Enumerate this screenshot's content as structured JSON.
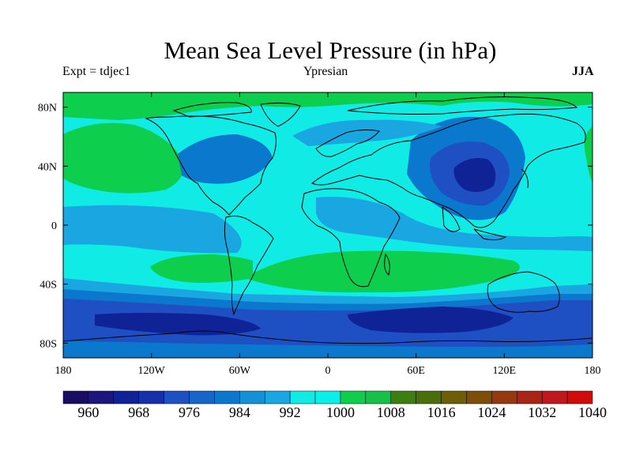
{
  "title": "Mean Sea Level Pressure (in hPa)",
  "subtitle_left": "Expt = tdjec1",
  "subtitle_center": "Ypresian",
  "subtitle_right": "JJA",
  "colors": {
    "deep_blue": "#0f2396",
    "blue": "#1f50c3",
    "mid_blue": "#0a78cd",
    "light_blue": "#1aa6e0",
    "cyan": "#10ebe6",
    "green": "#0dce4d",
    "coast": "#000000"
  },
  "chart_data": {
    "type": "filled-contour-map",
    "variable": "Mean Sea Level Pressure",
    "units": "hPa",
    "season": "JJA",
    "x_ticks": [
      "180",
      "120W",
      "60W",
      "0",
      "60E",
      "120E",
      "180"
    ],
    "y_ticks": [
      "80N",
      "40N",
      "0",
      "40S",
      "80S"
    ],
    "lon_range": [
      -180,
      180
    ],
    "lat_range": [
      -90,
      90
    ],
    "colorbar": {
      "levels": [
        960,
        964,
        968,
        972,
        976,
        980,
        984,
        988,
        992,
        996,
        1000,
        1004,
        1008,
        1012,
        1016,
        1020,
        1024,
        1028,
        1032,
        1036,
        1040
      ],
      "labels": [
        "960",
        "968",
        "976",
        "984",
        "992",
        "1000",
        "1008",
        "1016",
        "1024",
        "1032",
        "1040"
      ],
      "colors": [
        "#190c64",
        "#1e167f",
        "#0f2396",
        "#1530a8",
        "#1f50c3",
        "#1566c8",
        "#0a78cd",
        "#1390d6",
        "#1aa6e0",
        "#10ebe6",
        "#08f0e8",
        "#0dce4d",
        "#17c048",
        "#3d7e12",
        "#4a6e0a",
        "#6e5e08",
        "#7d4e0a",
        "#963810",
        "#a82414",
        "#c0181c",
        "#d20a0a"
      ]
    }
  }
}
